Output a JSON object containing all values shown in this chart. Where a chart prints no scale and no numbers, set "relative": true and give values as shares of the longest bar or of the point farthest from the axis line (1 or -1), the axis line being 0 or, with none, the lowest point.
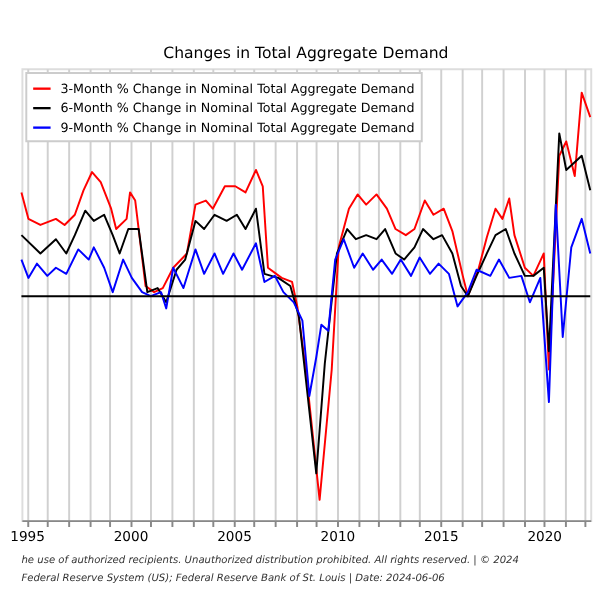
{
  "chart_data": {
    "type": "line",
    "title": "Changes in Total Aggregate Demand",
    "relative": true,
    "grid": "x",
    "legend": "top left",
    "tick_labels": "x",
    "line_style": "solid",
    "marker": "none",
    "xlim": [
      "1994-10",
      "2022-04"
    ],
    "xticks": [
      {
        "value": "1995",
        "label": "1995"
      },
      {
        "value": "1996",
        "label": null
      },
      {
        "value": "1997",
        "label": null
      },
      {
        "value": "1998",
        "label": null
      },
      {
        "value": "1999",
        "label": null
      },
      {
        "value": "2000",
        "label": "2000"
      },
      {
        "value": "2001",
        "label": null
      },
      {
        "value": "2002",
        "label": null
      },
      {
        "value": "2003",
        "label": null
      },
      {
        "value": "2004",
        "label": null
      },
      {
        "value": "2005",
        "label": "2005"
      },
      {
        "value": "2006",
        "label": null
      },
      {
        "value": "2007",
        "label": null
      },
      {
        "value": "2008",
        "label": null
      },
      {
        "value": "2009",
        "label": null
      },
      {
        "value": "2010",
        "label": "2010"
      },
      {
        "value": "2011",
        "label": null
      },
      {
        "value": "2012",
        "label": null
      },
      {
        "value": "2013",
        "label": null
      },
      {
        "value": "2014",
        "label": null
      },
      {
        "value": "2015",
        "label": "2015"
      },
      {
        "value": "2016",
        "label": null
      },
      {
        "value": "2017",
        "label": null
      },
      {
        "value": "2018",
        "label": null
      },
      {
        "value": "2019",
        "label": null
      },
      {
        "value": "2020",
        "label": "2020"
      },
      {
        "value": "2021",
        "label": null
      },
      {
        "value": "2022",
        "label": null
      }
    ],
    "ref_lines": [
      {
        "axis": "y",
        "value": 0,
        "color": "#000000"
      }
    ],
    "annotations": [
      "he use of authorized recipients. Unauthorized distribution prohibited. All rights reserved. | © 2024",
      "Federal Reserve System (US); Federal Reserve Bank of St. Louis | Date: 2024-06-06"
    ],
    "series": [
      {
        "name": "3-Month % Change in Nominal Total Aggregate Demand",
        "color": "#ff0000",
        "x": [
          "1994-10",
          "1995-02",
          "1995-09",
          "1996-06",
          "1996-11",
          "1997-05",
          "1997-10",
          "1998-03",
          "1998-08",
          "1999-02",
          "1999-05",
          "1999-11",
          "2000-01",
          "2000-04",
          "2000-10",
          "2001-03",
          "2001-08",
          "2002-02",
          "2002-10",
          "2003-03",
          "2003-09",
          "2004-01",
          "2004-08",
          "2005-02",
          "2005-08",
          "2006-02",
          "2006-06",
          "2006-09",
          "2007-05",
          "2007-11",
          "2008-02",
          "2008-07",
          "2009-03",
          "2009-10",
          "2010-02",
          "2010-08",
          "2011-01",
          "2011-06",
          "2011-12",
          "2012-06",
          "2012-11",
          "2013-05",
          "2013-10",
          "2014-04",
          "2014-09",
          "2015-03",
          "2015-08",
          "2016-02",
          "2016-05",
          "2016-11",
          "2017-04",
          "2017-09",
          "2018-01",
          "2018-05",
          "2018-08",
          "2019-02",
          "2019-07",
          "2020-01",
          "2020-04",
          "2020-10",
          "2021-02",
          "2021-07",
          "2021-11",
          "2022-04"
        ],
        "values": [
          0.51,
          0.38,
          0.35,
          0.38,
          0.35,
          0.4,
          0.52,
          0.61,
          0.56,
          0.43,
          0.33,
          0.38,
          0.51,
          0.47,
          0.05,
          0.02,
          0.04,
          0.14,
          0.21,
          0.45,
          0.47,
          0.43,
          0.54,
          0.54,
          0.51,
          0.62,
          0.54,
          0.14,
          0.09,
          0.07,
          -0.05,
          -0.36,
          -1,
          -0.36,
          0.24,
          0.43,
          0.5,
          0.45,
          0.5,
          0.43,
          0.33,
          0.3,
          0.33,
          0.47,
          0.4,
          0.43,
          0.32,
          0.1,
          0,
          0.13,
          0.29,
          0.43,
          0.38,
          0.48,
          0.3,
          0.14,
          0.1,
          0.21,
          -0.36,
          0.69,
          0.76,
          0.59,
          1.0,
          0.88
        ]
      },
      {
        "name": "6-Month % Change in Nominal Total Aggregate Demand",
        "color": "#000000",
        "x": [
          "1994-10",
          "1995-09",
          "1996-06",
          "1996-12",
          "1997-05",
          "1997-11",
          "1998-04",
          "1998-10",
          "1999-03",
          "1999-07",
          "1999-12",
          "2000-06",
          "2000-11",
          "2001-05",
          "2001-10",
          "2002-04",
          "2002-09",
          "2003-03",
          "2003-08",
          "2004-02",
          "2004-09",
          "2005-03",
          "2005-08",
          "2006-02",
          "2006-07",
          "2007-03",
          "2007-10",
          "2008-03",
          "2009-01",
          "2009-06",
          "2010-01",
          "2010-07",
          "2010-12",
          "2011-06",
          "2011-12",
          "2012-05",
          "2012-11",
          "2013-04",
          "2013-10",
          "2014-03",
          "2014-09",
          "2015-02",
          "2015-08",
          "2016-01",
          "2016-05",
          "2016-10",
          "2017-04",
          "2017-09",
          "2018-03",
          "2018-08",
          "2019-02",
          "2019-07",
          "2020-01",
          "2020-04",
          "2020-10",
          "2021-02",
          "2021-11",
          "2022-04"
        ],
        "values": [
          0.3,
          0.21,
          0.28,
          0.21,
          0.3,
          0.42,
          0.37,
          0.4,
          0.3,
          0.21,
          0.33,
          0.33,
          0.02,
          0.04,
          -0.03,
          0.13,
          0.18,
          0.37,
          0.33,
          0.4,
          0.37,
          0.4,
          0.33,
          0.43,
          0.11,
          0.09,
          0.05,
          -0.1,
          -0.87,
          -0.33,
          0.21,
          0.33,
          0.28,
          0.3,
          0.28,
          0.33,
          0.21,
          0.18,
          0.24,
          0.33,
          0.28,
          0.3,
          0.21,
          0.05,
          0,
          0.1,
          0.21,
          0.3,
          0.33,
          0.21,
          0.1,
          0.1,
          0.14,
          -0.27,
          0.8,
          0.62,
          0.69,
          0.52
        ]
      },
      {
        "name": "9-Month % Change in Nominal Total Aggregate Demand",
        "color": "#0000ff",
        "x": [
          "1994-10",
          "1995-02",
          "1995-07",
          "1996-01",
          "1996-06",
          "1996-12",
          "1997-07",
          "1998-01",
          "1998-04",
          "1998-10",
          "1999-03",
          "1999-09",
          "2000-02",
          "2000-08",
          "2001-01",
          "2001-07",
          "2001-10",
          "2002-02",
          "2002-08",
          "2003-03",
          "2003-08",
          "2004-02",
          "2004-07",
          "2005-01",
          "2005-06",
          "2006-02",
          "2006-07",
          "2007-01",
          "2007-06",
          "2007-12",
          "2008-05",
          "2008-09",
          "2009-01",
          "2009-04",
          "2009-08",
          "2009-12",
          "2010-05",
          "2010-11",
          "2011-04",
          "2011-10",
          "2012-03",
          "2012-09",
          "2013-02",
          "2013-08",
          "2014-01",
          "2014-07",
          "2014-12",
          "2015-06",
          "2015-11",
          "2016-05",
          "2016-10",
          "2017-06",
          "2017-11",
          "2018-05",
          "2018-12",
          "2019-05",
          "2019-11",
          "2020-04",
          "2020-08",
          "2020-12",
          "2021-05",
          "2021-11",
          "2022-04"
        ],
        "values": [
          0.18,
          0.09,
          0.16,
          0.1,
          0.14,
          0.11,
          0.23,
          0.18,
          0.24,
          0.14,
          0.02,
          0.18,
          0.09,
          0.02,
          0,
          0.02,
          -0.06,
          0.14,
          0.04,
          0.23,
          0.11,
          0.21,
          0.11,
          0.21,
          0.13,
          0.26,
          0.07,
          0.1,
          0.02,
          -0.03,
          -0.12,
          -0.49,
          -0.3,
          -0.14,
          -0.17,
          0.18,
          0.28,
          0.14,
          0.21,
          0.13,
          0.18,
          0.11,
          0.18,
          0.1,
          0.19,
          0.11,
          0.16,
          0.11,
          -0.05,
          0.02,
          0.13,
          0.1,
          0.18,
          0.09,
          0.1,
          -0.03,
          0.09,
          -0.52,
          0.45,
          -0.2,
          0.24,
          0.38,
          0.21
        ]
      }
    ]
  }
}
